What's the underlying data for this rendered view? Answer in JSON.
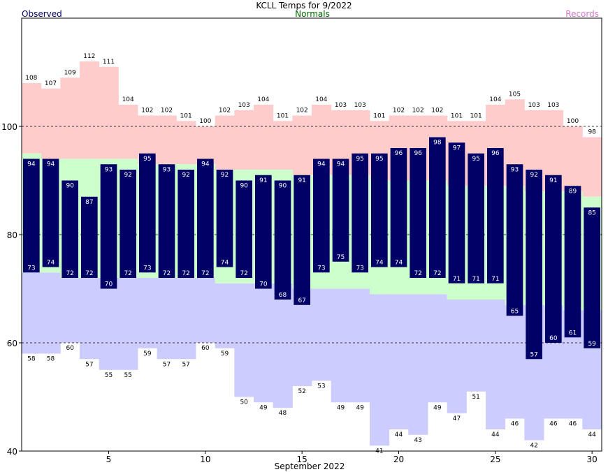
{
  "chart_data": {
    "type": "bar",
    "title": "KCLL Temps for 9/2022",
    "xlabel": "September 2022",
    "ylabel": "",
    "ylim": [
      40,
      120
    ],
    "y_ticks": [
      40,
      60,
      80,
      100
    ],
    "x_ticks": [
      5,
      10,
      15,
      20,
      25,
      30
    ],
    "grid_y": [
      60,
      80,
      100
    ],
    "legend": {
      "observed": "Observed",
      "normals": "Normals",
      "records": "Records"
    },
    "colors": {
      "observed": "#000066",
      "normal": "#ccffcc",
      "record_high": "#ffcccc",
      "record_low": "#ccccff",
      "observed_text": "#000066",
      "normals_text": "#006600",
      "records_text": "#cc77cc"
    },
    "days": [
      1,
      2,
      3,
      4,
      5,
      6,
      7,
      8,
      9,
      10,
      11,
      12,
      13,
      14,
      15,
      16,
      17,
      18,
      19,
      20,
      21,
      22,
      23,
      24,
      25,
      26,
      27,
      28,
      29,
      30
    ],
    "series": [
      {
        "name": "Observed",
        "high": [
          94,
          94,
          90,
          87,
          93,
          92,
          95,
          93,
          92,
          94,
          92,
          90,
          91,
          90,
          91,
          94,
          94,
          95,
          95,
          96,
          96,
          98,
          97,
          95,
          96,
          93,
          92,
          91,
          89,
          85
        ],
        "low": [
          73,
          74,
          72,
          72,
          70,
          72,
          73,
          72,
          72,
          72,
          74,
          72,
          70,
          68,
          67,
          73,
          75,
          73,
          74,
          74,
          72,
          72,
          71,
          71,
          71,
          65,
          57,
          60,
          61,
          59
        ]
      },
      {
        "name": "Normals",
        "high": [
          95,
          94,
          94,
          94,
          94,
          94,
          93,
          93,
          93,
          93,
          92,
          92,
          92,
          92,
          91,
          91,
          91,
          91,
          90,
          90,
          90,
          90,
          89,
          89,
          89,
          89,
          88,
          88,
          88,
          87
        ],
        "low": [
          73,
          73,
          72,
          72,
          72,
          72,
          72,
          72,
          72,
          72,
          71,
          71,
          71,
          71,
          70,
          70,
          70,
          70,
          69,
          69,
          69,
          69,
          68,
          68,
          68,
          67,
          67,
          67,
          66,
          66
        ]
      },
      {
        "name": "Records",
        "high": [
          108,
          107,
          109,
          112,
          111,
          104,
          102,
          102,
          101,
          100,
          102,
          103,
          104,
          101,
          102,
          104,
          103,
          103,
          101,
          102,
          102,
          102,
          101,
          101,
          104,
          105,
          103,
          103,
          100,
          98
        ],
        "low": [
          58,
          58,
          60,
          57,
          55,
          55,
          59,
          57,
          57,
          60,
          59,
          50,
          49,
          48,
          52,
          53,
          49,
          49,
          41,
          44,
          43,
          49,
          47,
          51,
          44,
          46,
          42,
          46,
          46,
          44
        ]
      }
    ]
  }
}
